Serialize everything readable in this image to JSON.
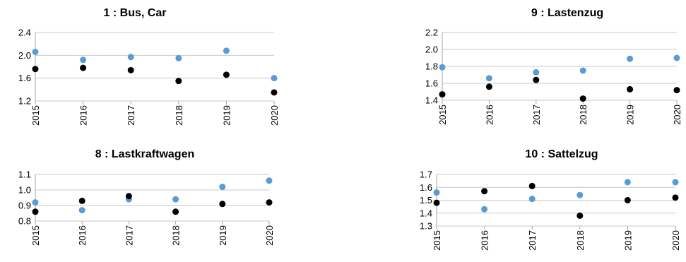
{
  "chart_data": [
    {
      "type": "scatter",
      "title": "1 : Bus, Car",
      "categories": [
        "2015",
        "2016",
        "2017",
        "2018",
        "2019",
        "2020"
      ],
      "yticks": [
        "1.2",
        "1.6",
        "2.0",
        "2.4"
      ],
      "ylim": [
        1.2,
        2.4
      ],
      "grid": true,
      "series": [
        {
          "color": "#5b9bd5",
          "values": [
            2.06,
            1.92,
            1.97,
            1.95,
            2.08,
            1.6
          ]
        },
        {
          "color": "#000000",
          "values": [
            1.76,
            1.78,
            1.74,
            1.55,
            1.66,
            1.35
          ]
        }
      ]
    },
    {
      "type": "scatter",
      "title": "9 : Lastenzug",
      "categories": [
        "2015",
        "2016",
        "2017",
        "2018",
        "2019",
        "2020"
      ],
      "yticks": [
        "1.4",
        "1.6",
        "1.8",
        "2.0",
        "2.2"
      ],
      "ylim": [
        1.4,
        2.2
      ],
      "grid": true,
      "series": [
        {
          "color": "#5b9bd5",
          "values": [
            1.79,
            1.66,
            1.73,
            1.75,
            1.89,
            1.9
          ]
        },
        {
          "color": "#000000",
          "values": [
            1.47,
            1.56,
            1.64,
            1.42,
            1.53,
            1.52
          ]
        }
      ]
    },
    {
      "type": "scatter",
      "title": "8 : Lastkraftwagen",
      "categories": [
        "2015",
        "2016",
        "2017",
        "2018",
        "2019",
        "2020"
      ],
      "yticks": [
        "0.8",
        "0.9",
        "1.0",
        "1.1"
      ],
      "ylim": [
        0.8,
        1.1
      ],
      "grid": true,
      "series": [
        {
          "color": "#5b9bd5",
          "values": [
            0.92,
            0.87,
            0.94,
            0.94,
            1.02,
            1.06
          ]
        },
        {
          "color": "#000000",
          "values": [
            0.86,
            0.93,
            0.96,
            0.86,
            0.91,
            0.92
          ]
        }
      ]
    },
    {
      "type": "scatter",
      "title": "10 : Sattelzug",
      "categories": [
        "2015",
        "2016",
        "2017",
        "2018",
        "2019",
        "2020"
      ],
      "yticks": [
        "1.3",
        "1.4",
        "1.5",
        "1.6",
        "1.7"
      ],
      "ylim": [
        1.3,
        1.7
      ],
      "grid": true,
      "series": [
        {
          "color": "#5b9bd5",
          "values": [
            1.56,
            1.43,
            1.51,
            1.54,
            1.64,
            1.64
          ]
        },
        {
          "color": "#000000",
          "values": [
            1.48,
            1.57,
            1.61,
            1.38,
            1.5,
            1.52
          ]
        }
      ]
    }
  ]
}
